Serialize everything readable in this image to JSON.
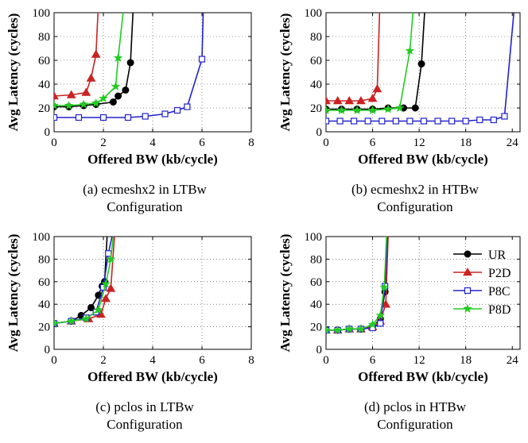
{
  "chart_data": [
    {
      "type": "line",
      "caption_line1": "(a) ecmeshx2 in LTBw",
      "caption_line2": "Configuration",
      "xlabel": "Offered BW (kb/cycle)",
      "ylabel": "Avg Latency (cycles)",
      "xlim": [
        0,
        8
      ],
      "ylim": [
        0,
        100
      ],
      "xticks": [
        0,
        2,
        4,
        6,
        8
      ],
      "yticks": [
        0,
        20,
        40,
        60,
        80,
        100
      ],
      "grid": true,
      "series": [
        {
          "key": "UR",
          "color": "#000000",
          "marker": "circle",
          "x": [
            0,
            0.6,
            1.2,
            1.7,
            2.4,
            2.6,
            2.9,
            3.1,
            3.2
          ],
          "y": [
            21,
            21,
            22,
            23,
            25,
            30,
            35,
            58,
            100
          ]
        },
        {
          "key": "P2D",
          "color": "#cc2222",
          "marker": "triangle",
          "x": [
            0,
            0.7,
            1.3,
            1.5,
            1.7,
            1.78
          ],
          "y": [
            30,
            31,
            33,
            45,
            65,
            100
          ]
        },
        {
          "key": "P8C",
          "color": "#2222cc",
          "marker": "square",
          "x": [
            0,
            1,
            2,
            3,
            3.7,
            4.5,
            5.0,
            5.4,
            6.0,
            6.05
          ],
          "y": [
            12,
            12,
            12,
            12,
            13,
            15,
            18,
            21,
            61,
            100
          ]
        },
        {
          "key": "P8D",
          "color": "#22cc22",
          "marker": "star",
          "x": [
            0,
            0.6,
            1.2,
            1.7,
            2.0,
            2.5,
            2.6,
            2.8
          ],
          "y": [
            22,
            22,
            23,
            24,
            28,
            38,
            62,
            100
          ]
        }
      ]
    },
    {
      "type": "line",
      "caption_line1": "(b) ecmeshx2 in HTBw",
      "caption_line2": "Configuration",
      "xlabel": "Offered BW (kb/cycle)",
      "ylabel": "Avg Latency (cycles)",
      "xlim": [
        0,
        25
      ],
      "ylim": [
        0,
        100
      ],
      "xticks": [
        0,
        6,
        12,
        18,
        24
      ],
      "yticks": [
        0,
        20,
        40,
        60,
        80,
        100
      ],
      "grid": true,
      "series": [
        {
          "key": "UR",
          "color": "#000000",
          "marker": "circle",
          "x": [
            0,
            2,
            4,
            6,
            8,
            10,
            11.5,
            12.3,
            12.7
          ],
          "y": [
            19,
            19,
            19,
            19,
            20,
            20,
            20,
            57,
            100
          ]
        },
        {
          "key": "P2D",
          "color": "#cc2222",
          "marker": "triangle",
          "x": [
            0,
            1.5,
            3,
            4.5,
            6,
            6.6,
            6.9
          ],
          "y": [
            26,
            26,
            26,
            26,
            28,
            36,
            100
          ]
        },
        {
          "key": "P8C",
          "color": "#2222cc",
          "marker": "square",
          "x": [
            0,
            1.8,
            3.6,
            5.4,
            7.2,
            9,
            10.8,
            12.6,
            14.4,
            16.2,
            18,
            19.8,
            21.6,
            23,
            24.2
          ],
          "y": [
            9,
            9,
            9,
            9,
            9,
            9,
            9,
            9,
            9,
            9,
            9,
            10,
            10,
            13,
            100
          ]
        },
        {
          "key": "P8D",
          "color": "#22cc22",
          "marker": "star",
          "x": [
            0,
            2,
            4,
            6,
            8,
            9.5,
            10.8,
            11.2
          ],
          "y": [
            18,
            18,
            18,
            18,
            19,
            20,
            68,
            100
          ]
        }
      ]
    },
    {
      "type": "line",
      "caption_line1": "(c) pclos in LTBw",
      "caption_line2": "Configuration",
      "xlabel": "Offered BW (kb/cycle)",
      "ylabel": "Avg Latency (cycles)",
      "xlim": [
        0,
        8
      ],
      "ylim": [
        0,
        100
      ],
      "xticks": [
        0,
        2,
        4,
        6,
        8
      ],
      "yticks": [
        0,
        20,
        40,
        60,
        80,
        100
      ],
      "grid": true,
      "series": [
        {
          "key": "UR",
          "color": "#000000",
          "marker": "circle",
          "x": [
            0,
            0.7,
            1.1,
            1.5,
            1.8,
            1.95,
            2.05,
            2.15
          ],
          "y": [
            23,
            25,
            30,
            37,
            48,
            56,
            60,
            100
          ]
        },
        {
          "key": "P2D",
          "color": "#cc2222",
          "marker": "triangle",
          "x": [
            0,
            0.7,
            1.4,
            1.9,
            2.1,
            2.3,
            2.45
          ],
          "y": [
            23,
            25,
            27,
            31,
            45,
            54,
            100
          ]
        },
        {
          "key": "P8C",
          "color": "#2222cc",
          "marker": "square",
          "x": [
            0,
            0.7,
            1.3,
            1.7,
            2.0,
            2.2,
            2.35
          ],
          "y": [
            23,
            25,
            28,
            33,
            55,
            85,
            100
          ]
        },
        {
          "key": "P8D",
          "color": "#22cc22",
          "marker": "star",
          "x": [
            0,
            0.7,
            1.3,
            1.8,
            2.1,
            2.3,
            2.4
          ],
          "y": [
            23,
            25,
            27,
            35,
            58,
            80,
            100
          ]
        }
      ]
    },
    {
      "type": "line",
      "caption_line1": "(d) pclos in HTBw",
      "caption_line2": "Configuration",
      "xlabel": "Offered BW (kb/cycle)",
      "ylabel": "Avg Latency (cycles)",
      "xlim": [
        0,
        25
      ],
      "ylim": [
        0,
        100
      ],
      "xticks": [
        0,
        6,
        12,
        18,
        24
      ],
      "yticks": [
        0,
        20,
        40,
        60,
        80,
        100
      ],
      "grid": true,
      "legend": {
        "position": "right",
        "entries": [
          "UR",
          "P2D",
          "P8C",
          "P8D"
        ]
      },
      "series": [
        {
          "key": "UR",
          "color": "#000000",
          "marker": "circle",
          "x": [
            0,
            1.5,
            3,
            4.5,
            6,
            7,
            7.6,
            7.9
          ],
          "y": [
            17,
            17,
            18,
            18,
            20,
            27,
            51,
            100
          ]
        },
        {
          "key": "P2D",
          "color": "#cc2222",
          "marker": "triangle",
          "x": [
            0,
            1.5,
            3,
            4.5,
            6,
            7,
            7.7,
            8.0
          ],
          "y": [
            17,
            17,
            18,
            18,
            20,
            25,
            40,
            100
          ]
        },
        {
          "key": "P8C",
          "color": "#2222cc",
          "marker": "square",
          "x": [
            0,
            1.5,
            3,
            4.5,
            6,
            7,
            7.6,
            7.9
          ],
          "y": [
            17,
            17,
            18,
            18,
            19,
            23,
            56,
            100
          ]
        },
        {
          "key": "P8D",
          "color": "#22cc22",
          "marker": "star",
          "x": [
            0,
            1.5,
            3,
            4.5,
            6,
            7,
            7.5,
            7.8
          ],
          "y": [
            17,
            17,
            18,
            18,
            22,
            30,
            55,
            100
          ]
        }
      ]
    }
  ]
}
